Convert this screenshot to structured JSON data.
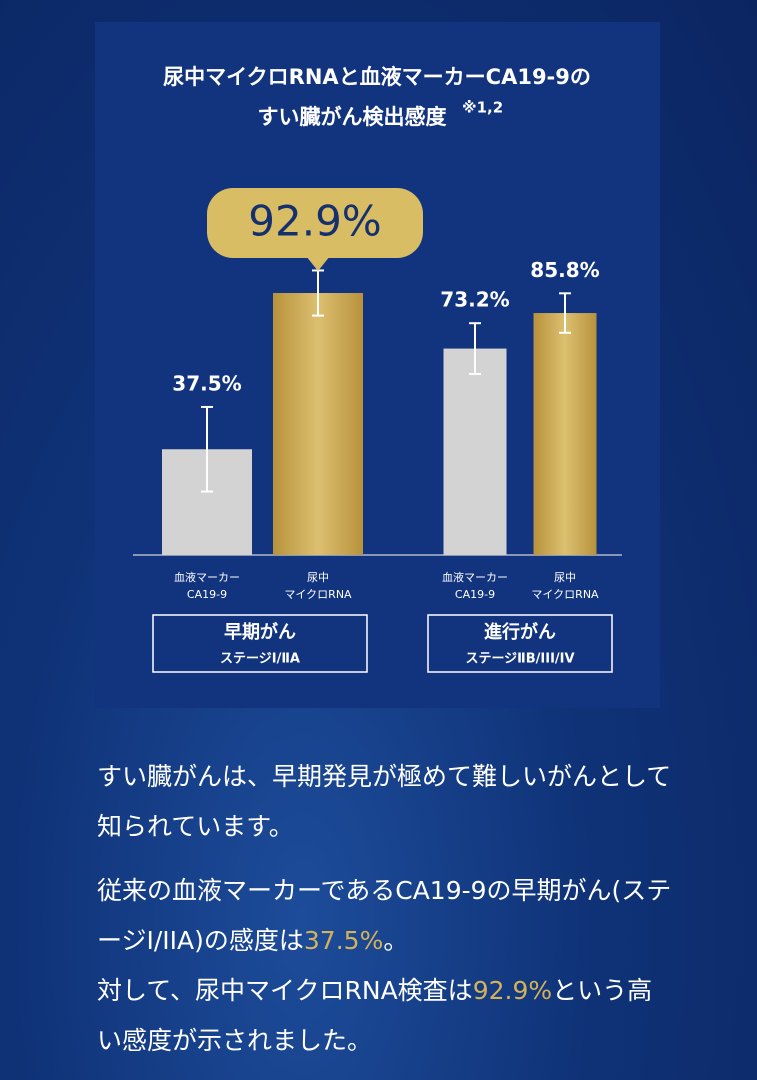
{
  "chart_data": {
    "type": "bar",
    "title": [
      "尿中マイクロRNAと血液マーカーCA19-9の",
      "すい臓がん検出感度"
    ],
    "title_note": "※1,2",
    "categories": [
      "早期がん",
      "進行がん"
    ],
    "category_sublabels": [
      "ステージⅠ/ⅡA",
      "ステージⅡB/III/IV"
    ],
    "series": [
      {
        "name": [
          "血液マーカー",
          "CA19-9"
        ],
        "color": "#d3d3d3",
        "values": [
          37.5,
          73.2
        ],
        "value_labels": [
          "37.5%",
          "73.2%"
        ],
        "errors": [
          15,
          9
        ]
      },
      {
        "name": [
          "尿中",
          "マイクロRNA"
        ],
        "color": "#c8a64e",
        "values": [
          92.9,
          85.8
        ],
        "value_labels": [
          "92.9%",
          "85.8%"
        ],
        "errors": [
          8,
          7
        ]
      }
    ],
    "ylim": [
      0,
      100
    ],
    "grid": false
  },
  "body": {
    "paragraphs": [
      [
        {
          "text": "すい臓がんは、早期発見が極めて難しいがんとして知られています。"
        }
      ],
      [
        {
          "text": "従来の血液マーカーであるCA19-9の早期がん(ステージI/IIA)の感度は"
        },
        {
          "text": "37.5%",
          "highlight": true
        },
        {
          "text": "。"
        }
      ],
      [
        {
          "text": "対して、尿中マイクロRNA検査は"
        },
        {
          "text": "92.9%",
          "highlight": true
        },
        {
          "text": "という高い感度が示されました。"
        }
      ]
    ]
  }
}
